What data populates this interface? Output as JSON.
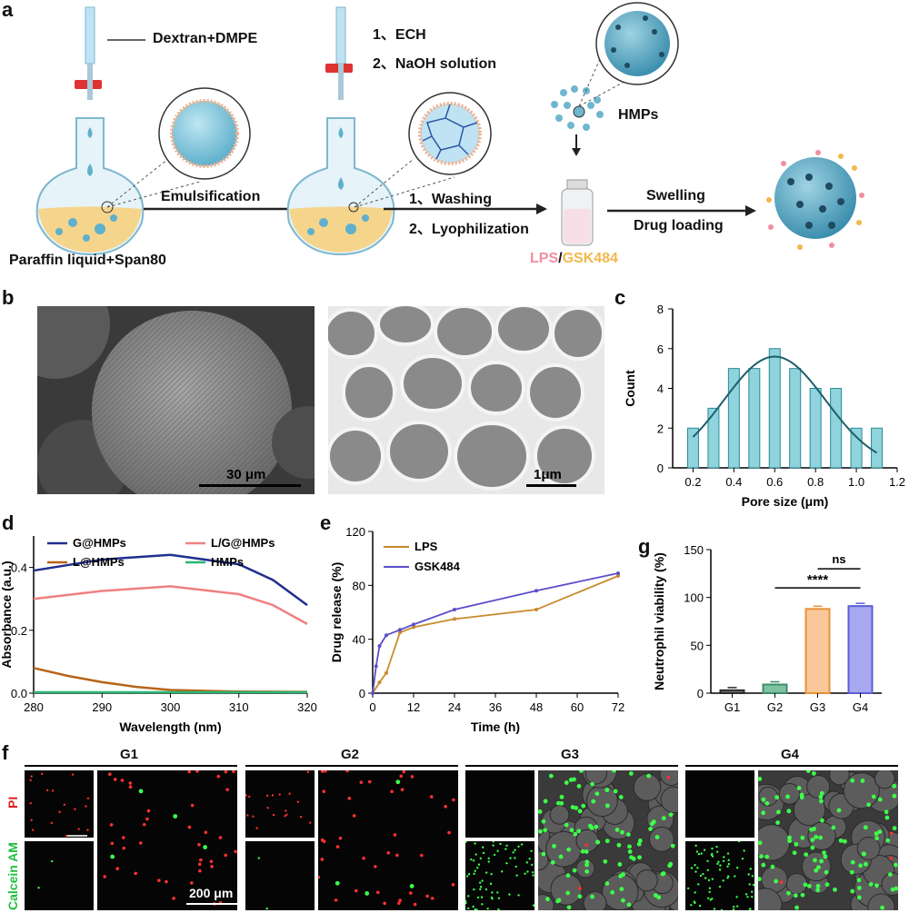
{
  "panels": {
    "a": "a",
    "b": "b",
    "c": "c",
    "d": "d",
    "e": "e",
    "f": "f",
    "g": "g"
  },
  "schematic": {
    "reagent1": "Dextran+DMPE",
    "step_ech": "1、ECH",
    "step_naoh": "2、NaOH solution",
    "emulsification": "Emulsification",
    "paraffin": "Paraffin liquid+Span80",
    "washing": "1、Washing",
    "lyophilization": "2、Lyophilization",
    "hmps": "HMPs",
    "swelling": "Swelling",
    "drug_loading": "Drug loading",
    "lps": "LPS",
    "slash": "/",
    "gsk": "GSK484",
    "colors": {
      "lps": "#f08fa0",
      "gsk": "#f2b84b",
      "sphere": "#7cc3d8",
      "dark": "#2b5f75"
    }
  },
  "sem": {
    "scale1": "30 μm",
    "scale2": "1μm"
  },
  "chart_data": [
    {
      "id": "c",
      "type": "bar",
      "xlabel": "Pore size (μm)",
      "ylabel": "Count",
      "x": [
        0.2,
        0.3,
        0.4,
        0.5,
        0.6,
        0.7,
        0.8,
        0.9,
        1.0,
        1.1
      ],
      "values": [
        2,
        3,
        5,
        5,
        6,
        5,
        4,
        4,
        2,
        2
      ],
      "xlim": [
        0.1,
        1.2
      ],
      "ylim": [
        0,
        8
      ],
      "xticks": [
        "0.2",
        "0.4",
        "0.6",
        "0.8",
        "1.0",
        "1.2"
      ],
      "yticks": [
        "0",
        "2",
        "4",
        "6",
        "8"
      ],
      "fit": "gaussian",
      "color": "#8fd3dc"
    },
    {
      "id": "d",
      "type": "line",
      "xlabel": "Wavelength (nm)",
      "ylabel": "Absorbance (a.u.)",
      "xlim": [
        280,
        320
      ],
      "ylim": [
        0,
        0.5
      ],
      "xticks": [
        "280",
        "290",
        "300",
        "310",
        "320"
      ],
      "yticks": [
        "0.0",
        "0.2",
        "0.4"
      ],
      "series": [
        {
          "name": "G@HMPs",
          "color": "#1f2f8f",
          "x": [
            280,
            290,
            300,
            310,
            315,
            320
          ],
          "y": [
            0.39,
            0.425,
            0.44,
            0.41,
            0.36,
            0.28
          ]
        },
        {
          "name": "L/G@HMPs",
          "color": "#f08080",
          "x": [
            280,
            290,
            300,
            310,
            315,
            320
          ],
          "y": [
            0.3,
            0.325,
            0.34,
            0.315,
            0.28,
            0.22
          ]
        },
        {
          "name": "L@HMPs",
          "color": "#b8641a",
          "x": [
            280,
            285,
            290,
            295,
            300,
            310,
            320
          ],
          "y": [
            0.08,
            0.055,
            0.035,
            0.02,
            0.01,
            0.005,
            0.004
          ]
        },
        {
          "name": "HMPs",
          "color": "#2bb573",
          "x": [
            280,
            300,
            320
          ],
          "y": [
            0.003,
            0.003,
            0.003
          ]
        }
      ]
    },
    {
      "id": "e",
      "type": "line",
      "xlabel": "Time (h)",
      "ylabel": "Drug release (%)",
      "xlim": [
        0,
        72
      ],
      "ylim": [
        0,
        120
      ],
      "xticks": [
        "0",
        "12",
        "24",
        "36",
        "48",
        "60",
        "72"
      ],
      "yticks": [
        "0",
        "40",
        "80",
        "120"
      ],
      "series": [
        {
          "name": "LPS",
          "color": "#c88a2a",
          "x": [
            0,
            2,
            4,
            8,
            12,
            24,
            48,
            72
          ],
          "y": [
            0,
            8,
            15,
            45,
            49,
            55,
            62,
            87
          ]
        },
        {
          "name": "GSK484",
          "color": "#5b4fc9",
          "x": [
            0,
            1,
            2,
            4,
            8,
            12,
            24,
            48,
            72
          ],
          "y": [
            0,
            20,
            35,
            43,
            47,
            51,
            62,
            76,
            89
          ]
        }
      ]
    },
    {
      "id": "g",
      "type": "bar",
      "ylabel": "Neutrophil viability (%)",
      "categories": [
        "G1",
        "G2",
        "G3",
        "G4"
      ],
      "values": [
        3,
        9,
        88,
        91
      ],
      "ylim": [
        0,
        150
      ],
      "yticks": [
        "0",
        "50",
        "100",
        "150"
      ],
      "colors": [
        "#2b2b2b",
        "#3f8f6a",
        "#e9913a",
        "#5b5fd6"
      ],
      "fills": [
        "#777777",
        "#7fc3a4",
        "#f9c79a",
        "#a7a8f0"
      ],
      "sig1": "****",
      "sig2": "ns"
    }
  ],
  "fluor": {
    "groups": [
      "G1",
      "G2",
      "G3",
      "G4"
    ],
    "pi": "PI",
    "calcein": "Calcein AM",
    "scale": "200 μm"
  }
}
